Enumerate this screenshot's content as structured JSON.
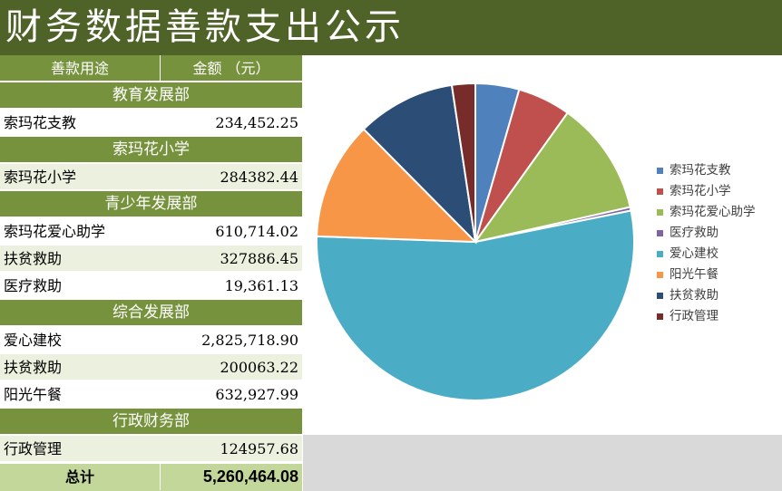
{
  "title": "财务数据善款支出公示",
  "table": {
    "header": {
      "purpose": "善款用途",
      "amount": "金额  （元）"
    },
    "sections": [
      {
        "name": "教育发展部",
        "items": [
          {
            "name": "索玛花支教",
            "amount": "234,452.25"
          }
        ]
      },
      {
        "name": "索玛花小学",
        "items": [
          {
            "name": "索玛花小学",
            "amount": "284382.44"
          }
        ]
      },
      {
        "name": "青少年发展部",
        "items": [
          {
            "name": "索玛花爱心助学",
            "amount": "610,714.02"
          },
          {
            "name": "扶贫救助",
            "amount": "327886.45"
          },
          {
            "name": "医疗救助",
            "amount": "19,361.13"
          }
        ]
      },
      {
        "name": "综合发展部",
        "items": [
          {
            "name": "爱心建校",
            "amount": "2,825,718.90"
          },
          {
            "name": "扶贫救助",
            "amount": "200063.22"
          },
          {
            "name": "阳光午餐",
            "amount": "632,927.99"
          }
        ]
      },
      {
        "name": "行政财务部",
        "items": [
          {
            "name": "行政管理",
            "amount": "124957.68"
          }
        ]
      }
    ],
    "total": {
      "label": "总计",
      "amount": "5,260,464.08"
    }
  },
  "chart_data": {
    "type": "pie",
    "categories": [
      "索玛花支教",
      "索玛花小学",
      "索玛花爱心助学",
      "医疗救助",
      "爱心建校",
      "阳光午餐",
      "扶贫救助",
      "行政管理"
    ],
    "values": [
      234452.25,
      284382.44,
      610714.02,
      19361.13,
      2825718.9,
      632927.99,
      527949.67,
      124957.68
    ],
    "colors": [
      "#4f81bd",
      "#c0504d",
      "#9bbb59",
      "#8064a2",
      "#4bacc6",
      "#f79646",
      "#2c4d75",
      "#772c2a"
    ],
    "legend_position": "right"
  }
}
